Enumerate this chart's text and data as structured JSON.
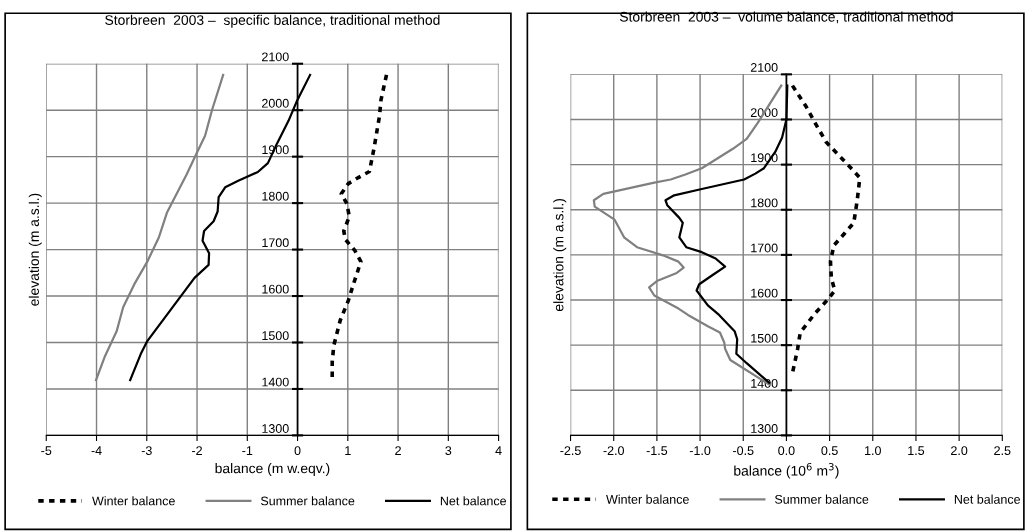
{
  "chart_data": [
    {
      "type": "line",
      "title": "Storbreen  2003 –  specific balance, traditional method",
      "xlabel": "balance (m w.eqv.)",
      "ylabel": "elevation (m a.s.l.)",
      "xlim": [
        -5,
        4
      ],
      "xticks": [
        -5,
        -4,
        -3,
        -2,
        -1,
        0,
        1,
        2,
        3,
        4
      ],
      "ylim": [
        1300,
        2100
      ],
      "yticks": [
        1300,
        1400,
        1500,
        1600,
        1700,
        1800,
        1900,
        2000,
        2100
      ],
      "grid": true,
      "legend": "bottom",
      "series": [
        {
          "name": "Winter balance",
          "color": "#000000",
          "line_style": "dotted",
          "x": [
            1.77,
            1.66,
            1.63,
            1.52,
            1.43,
            1.21,
            1.01,
            0.87,
            0.98,
            1.03,
            0.92,
            0.95,
            1.14,
            1.26,
            1.11,
            1.01,
            0.85,
            0.72,
            0.69,
            0.69
          ],
          "values": [
            2076,
            2022,
            1987,
            1917,
            1868,
            1855,
            1842,
            1820,
            1799,
            1771,
            1740,
            1722,
            1698,
            1674,
            1625,
            1590,
            1548,
            1493,
            1458,
            1423
          ]
        },
        {
          "name": "Summer balance",
          "color": "#808080",
          "line_style": "solid",
          "x": [
            -1.48,
            -1.7,
            -1.84,
            -2.01,
            -2.21,
            -2.6,
            -2.76,
            -2.99,
            -3.25,
            -3.47,
            -3.6,
            -3.83,
            -4.01
          ],
          "values": [
            2076,
            2001,
            1945,
            1907,
            1861,
            1779,
            1726,
            1674,
            1625,
            1576,
            1524,
            1471,
            1419
          ]
        },
        {
          "name": "Net balance",
          "color": "#000000",
          "line_style": "solid",
          "x": [
            0.25,
            -0.02,
            -0.18,
            -0.41,
            -0.59,
            -0.79,
            -1.18,
            -1.44,
            -1.57,
            -1.59,
            -1.67,
            -1.86,
            -1.89,
            -1.76,
            -1.77,
            -2.05,
            -2.34,
            -2.99,
            -3.12,
            -3.33
          ],
          "values": [
            2076,
            2018,
            1977,
            1928,
            1886,
            1867,
            1848,
            1834,
            1813,
            1782,
            1761,
            1740,
            1719,
            1692,
            1667,
            1639,
            1597,
            1503,
            1475,
            1419
          ]
        }
      ]
    },
    {
      "type": "line",
      "title": "Storbreen  2003 –  volume balance, traditional method",
      "xlabel": "balance (10$^{6}$ m$^{3}$)",
      "ylabel": "elevation (m a.s.l.)",
      "xlim": [
        -2.5,
        2.5
      ],
      "xticks": [
        {
          "value": -2.5,
          "label": "-2.5"
        },
        {
          "value": -2,
          "label": "-2.0"
        },
        {
          "value": -1.5,
          "label": "-1.5"
        },
        {
          "value": -1,
          "label": "-1.0"
        },
        {
          "value": -0.5,
          "label": "-0.5"
        },
        {
          "value": 0,
          "label": "0.0"
        },
        {
          "value": 0.5,
          "label": "0.5"
        },
        {
          "value": 1,
          "label": "1.0"
        },
        {
          "value": 1.5,
          "label": "1.5"
        },
        {
          "value": 2,
          "label": "2.0"
        },
        {
          "value": 2.5,
          "label": "2.5"
        }
      ],
      "ylim": [
        1300,
        2100
      ],
      "yticks": [
        1300,
        1400,
        1500,
        1600,
        1700,
        1800,
        1900,
        2000,
        2100
      ],
      "grid": true,
      "legend": "bottom",
      "series": [
        {
          "name": "Winter balance",
          "color": "#000000",
          "line_style": "dotted",
          "x": [
            0.07,
            0.23,
            0.33,
            0.46,
            0.75,
            0.85,
            0.82,
            0.78,
            0.68,
            0.55,
            0.51,
            0.52,
            0.56,
            0.47,
            0.33,
            0.16,
            0.13,
            0.07
          ],
          "values": [
            2075,
            2028,
            1993,
            1950,
            1892,
            1871,
            1821,
            1771,
            1749,
            1721,
            1685,
            1649,
            1621,
            1599,
            1570,
            1528,
            1492,
            1438
          ]
        },
        {
          "name": "Summer balance",
          "color": "#808080",
          "line_style": "solid",
          "x": [
            -0.06,
            -0.33,
            -0.46,
            -0.62,
            -0.98,
            -1.17,
            -1.34,
            -1.53,
            -2.12,
            -2.23,
            -2.22,
            -1.99,
            -1.88,
            -1.73,
            -1.43,
            -1.25,
            -1.19,
            -1.27,
            -1.5,
            -1.59,
            -1.53,
            -1.25,
            -1.14,
            -0.91,
            -0.77,
            -0.72,
            -0.71,
            -0.65,
            -0.2
          ],
          "values": [
            2075,
            1993,
            1957,
            1935,
            1892,
            1878,
            1867,
            1860,
            1835,
            1821,
            1807,
            1778,
            1739,
            1717,
            1699,
            1685,
            1672,
            1660,
            1642,
            1628,
            1610,
            1581,
            1567,
            1542,
            1528,
            1506,
            1492,
            1467,
            1413
          ]
        },
        {
          "name": "Net balance",
          "color": "#000000",
          "line_style": "solid",
          "x": [
            0.01,
            0.0,
            -0.05,
            -0.13,
            -0.26,
            -0.36,
            -0.49,
            -0.98,
            -1.3,
            -1.4,
            -1.38,
            -1.24,
            -1.2,
            -1.24,
            -1.16,
            -0.98,
            -0.82,
            -0.71,
            -0.85,
            -1.01,
            -1.04,
            -0.91,
            -0.78,
            -0.6,
            -0.57,
            -0.58,
            -0.46,
            -0.2
          ],
          "values": [
            2075,
            2000,
            1960,
            1928,
            1892,
            1880,
            1867,
            1846,
            1832,
            1821,
            1810,
            1782,
            1771,
            1739,
            1717,
            1706,
            1692,
            1674,
            1656,
            1635,
            1621,
            1588,
            1567,
            1531,
            1513,
            1481,
            1460,
            1417
          ]
        }
      ]
    }
  ]
}
